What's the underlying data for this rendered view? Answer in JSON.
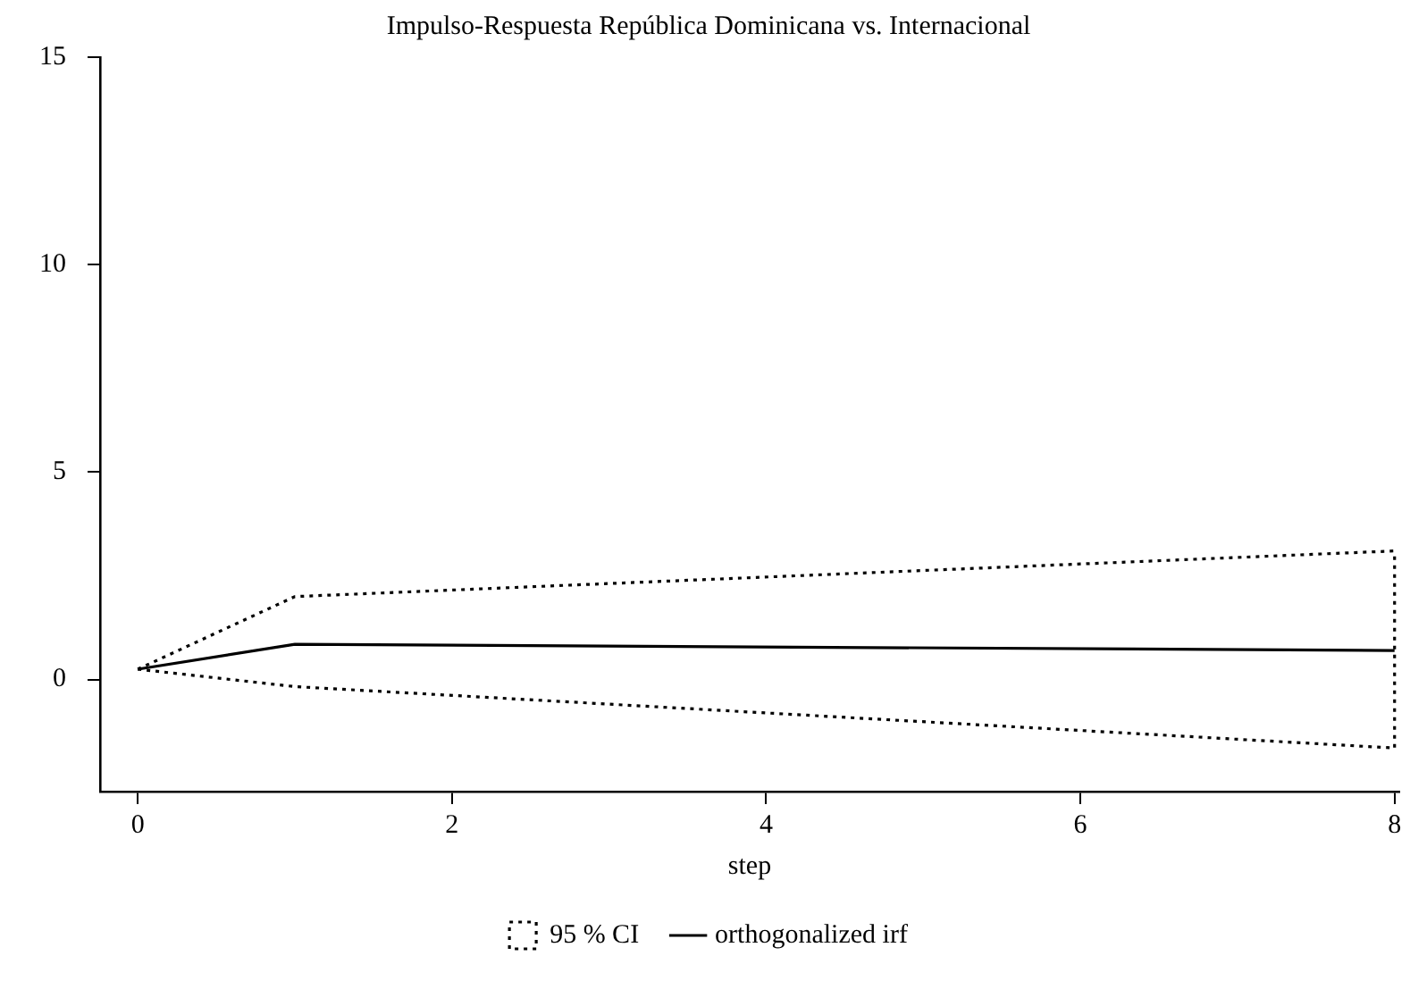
{
  "chart_data": {
    "type": "line",
    "title": "Impulso-Respuesta República Dominicana vs. Internacional",
    "xlabel": "step",
    "series": [
      {
        "name": "95 % CI",
        "x": [
          0,
          1,
          8
        ],
        "values": [
          0.25,
          2.0,
          3.1
        ],
        "color": "#000000",
        "line_style": "dotted"
      },
      {
        "x": [
          0,
          1,
          8,
          8
        ],
        "values": [
          0.25,
          -0.17,
          -1.65,
          3.1
        ],
        "color": "#000000",
        "line_style": "dotted"
      },
      {
        "name": "orthogonalized irf",
        "x": [
          0,
          1,
          8
        ],
        "values": [
          0.25,
          0.85,
          0.7
        ],
        "color": "#000000",
        "line_style": "solid"
      }
    ],
    "xlim": [
      -0.24,
      8.03
    ],
    "xticks": [
      0,
      2,
      4,
      6,
      8
    ],
    "ylim": [
      -2.7,
      15
    ],
    "yticks": [
      0,
      5,
      10,
      15
    ],
    "grid": false,
    "legend": "bottom",
    "marker": "none"
  }
}
